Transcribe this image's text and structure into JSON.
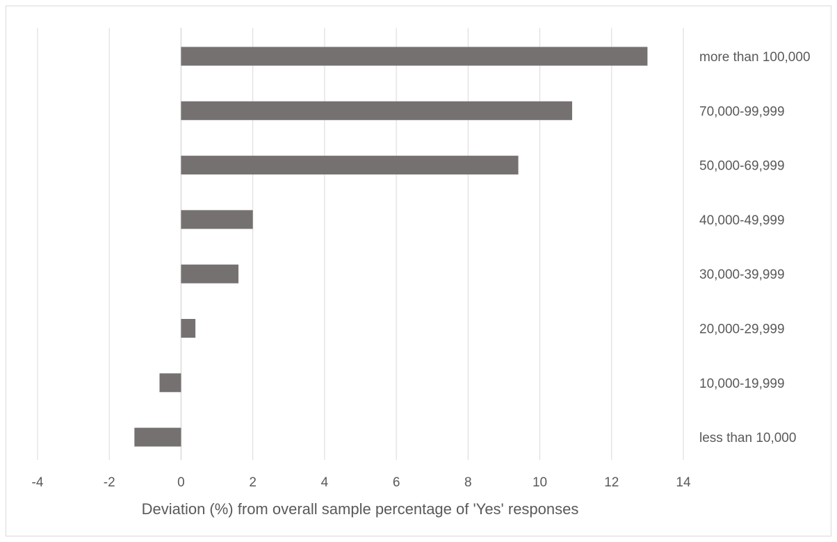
{
  "chart_data": {
    "type": "bar",
    "orientation": "horizontal",
    "title": "",
    "xlabel": "Deviation (%) from overall sample percentage of 'Yes' responses",
    "ylabel": "",
    "xlim": [
      -4,
      14
    ],
    "x_ticks": [
      "-4",
      "-2",
      "0",
      "2",
      "4",
      "6",
      "8",
      "10",
      "12",
      "14"
    ],
    "grid": "vertical",
    "legend": "none",
    "categories": [
      "more than 100,000",
      "70,000-99,999",
      "50,000-69,999",
      "40,000-49,999",
      "30,000-39,999",
      "20,000-29,999",
      "10,000-19,999",
      "less than 10,000"
    ],
    "values": [
      13.0,
      10.9,
      9.4,
      2.0,
      1.6,
      0.4,
      -0.6,
      -1.3
    ],
    "colors": {
      "bar": "#767171",
      "grid": "#d9d9d9",
      "text": "#595959"
    }
  }
}
